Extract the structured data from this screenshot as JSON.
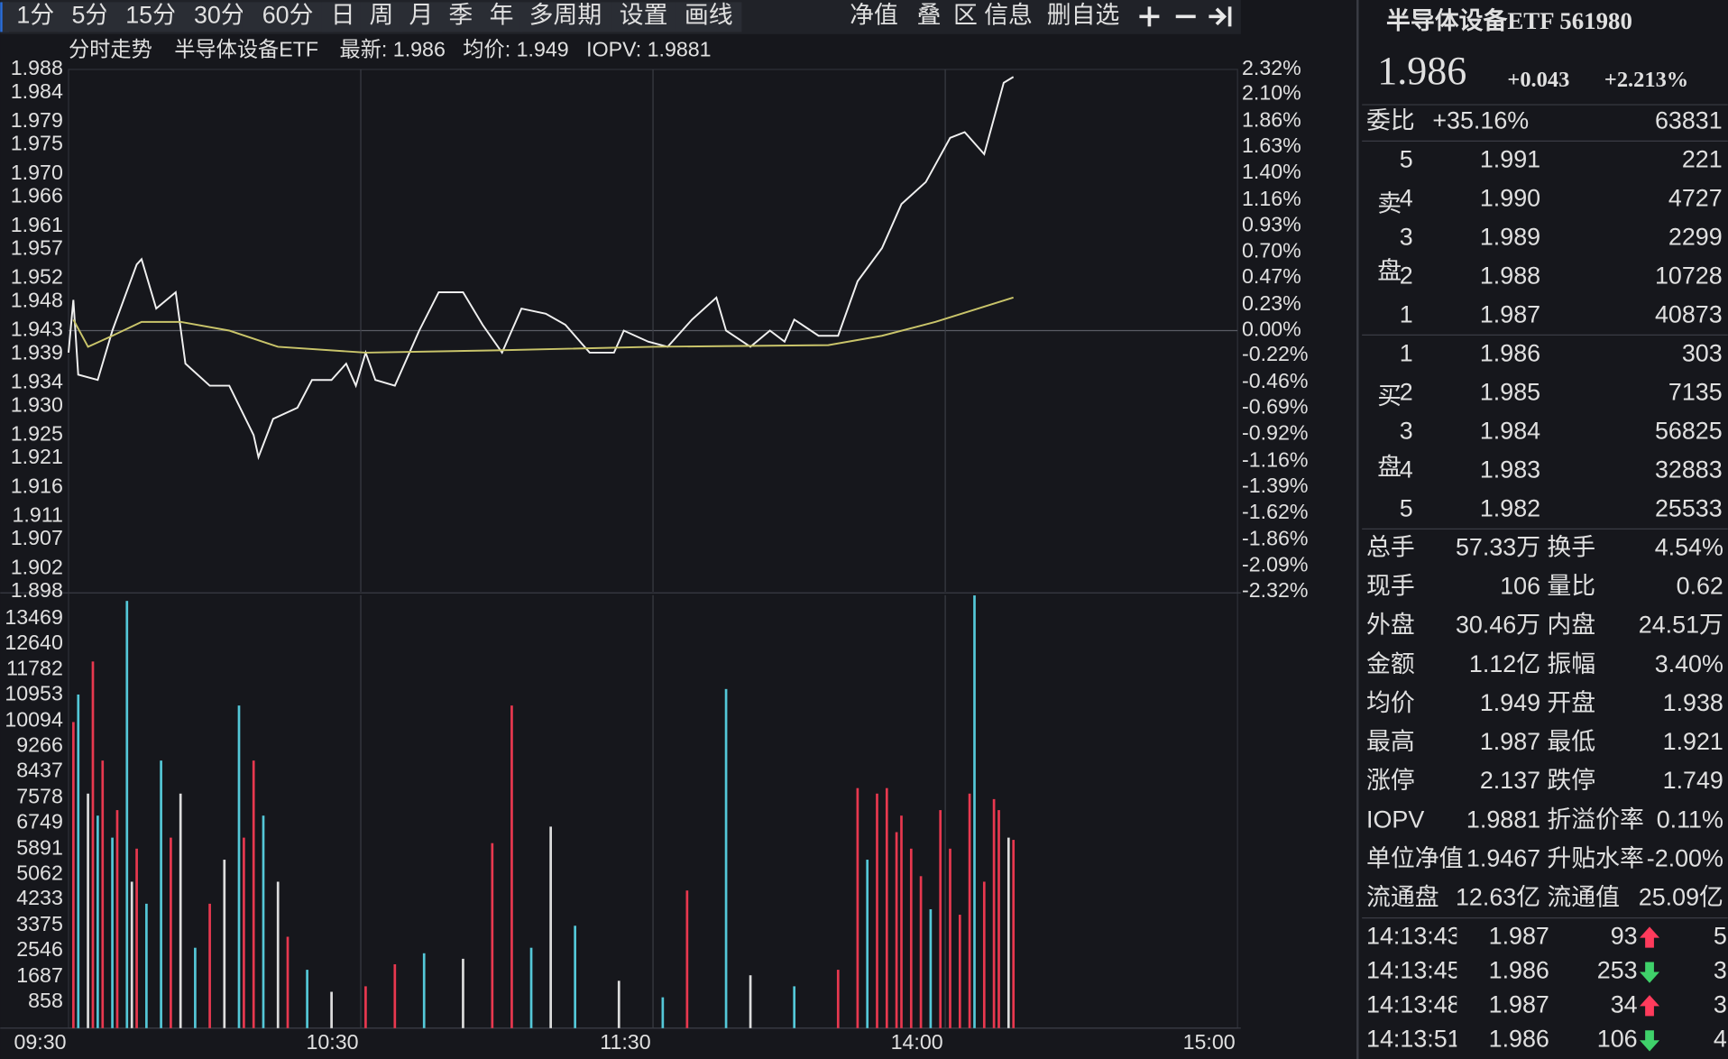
{
  "toolbar": {
    "periods": [
      "1分",
      "5分",
      "15分",
      "30分",
      "60分",
      "日",
      "周",
      "月",
      "季",
      "年",
      "多周期",
      "设置",
      "画线"
    ],
    "tools": [
      "净值",
      "叠",
      "区",
      "信息",
      "删自选"
    ]
  },
  "chart_header": {
    "mode": "分时走势",
    "name": "半导体设备ETF",
    "latest": "最新: 1.986",
    "avg": "均价: 1.949",
    "iopv": "IOPV: 1.9881"
  },
  "chart_data": [
    {
      "type": "line",
      "series": [
        {
          "color": "#f0f0f0",
          "x": [
            0,
            1,
            2,
            6,
            9,
            14,
            15,
            18,
            22,
            24,
            29,
            33,
            38,
            39,
            42,
            47,
            50,
            54,
            57,
            59,
            61,
            63,
            67,
            72,
            76,
            81,
            85,
            89,
            93,
            98,
            102,
            107,
            112,
            114,
            119,
            123,
            128,
            133,
            135,
            140,
            144,
            147,
            149,
            154,
            158,
            162,
            167,
            171,
            176,
            181,
            184,
            188,
            192,
            194
          ],
          "values": [
            1.9392,
            1.9483,
            1.9354,
            1.9345,
            1.943,
            1.9544,
            1.9553,
            1.9468,
            1.9496,
            1.9373,
            1.9335,
            1.9335,
            1.925,
            1.9212,
            1.9278,
            1.9297,
            1.9345,
            1.9345,
            1.9373,
            1.9335,
            1.9392,
            1.9345,
            1.9335,
            1.943,
            1.9496,
            1.9496,
            1.944,
            1.9392,
            1.9468,
            1.9459,
            1.944,
            1.9392,
            1.9392,
            1.943,
            1.9411,
            1.9402,
            1.9449,
            1.9487,
            1.943,
            1.9402,
            1.943,
            1.9411,
            1.9449,
            1.9421,
            1.9421,
            1.9515,
            1.9572,
            1.9648,
            1.9686,
            1.9762,
            1.9772,
            1.9734,
            1.9857,
            1.9867
          ]
        },
        {
          "color": "#c9c46a",
          "x": [
            1,
            4,
            9,
            15,
            23,
            33,
            43,
            61,
            88,
            120,
            156,
            167,
            178,
            194
          ],
          "values": [
            1.9449,
            1.9402,
            1.9421,
            1.9445,
            1.9445,
            1.943,
            1.9402,
            1.9392,
            1.9396,
            1.9402,
            1.9405,
            1.9421,
            1.9445,
            1.9487
          ]
        }
      ],
      "xlim": [
        0,
        240
      ],
      "xticks": [
        {
          "value": 0,
          "label": "09:30"
        },
        {
          "value": 60,
          "label": "10:30"
        },
        {
          "value": 120,
          "label": "11:30"
        },
        {
          "value": 180,
          "label": "14:00"
        },
        {
          "value": 240,
          "label": "15:00"
        }
      ],
      "ylim": [
        1.898,
        1.988
      ],
      "yticks": [
        1.988,
        1.984,
        1.979,
        1.975,
        {
          "value": 1.97,
          "label": "1.970"
        },
        1.966,
        1.961,
        1.957,
        1.952,
        1.948,
        1.943,
        1.939,
        1.934,
        {
          "value": 1.93,
          "label": "1.930"
        },
        1.925,
        1.921,
        1.916,
        1.911,
        1.907,
        1.902,
        1.898
      ],
      "y2lim": [
        -2.32,
        2.32
      ],
      "y2ticks": [
        {
          "value": 2.32,
          "label": "2.32%"
        },
        {
          "value": 2.1,
          "label": "2.10%"
        },
        {
          "value": 1.86,
          "label": "1.86%"
        },
        {
          "value": 1.63,
          "label": "1.63%"
        },
        {
          "value": 1.4,
          "label": "1.40%"
        },
        {
          "value": 1.16,
          "label": "1.16%"
        },
        {
          "value": 0.93,
          "label": "0.93%"
        },
        {
          "value": 0.7,
          "label": "0.70%"
        },
        {
          "value": 0.47,
          "label": "0.47%"
        },
        {
          "value": 0.23,
          "label": "0.23%"
        },
        {
          "value": 0,
          "label": "0.00%"
        },
        {
          "value": -0.22,
          "label": "-0.22%"
        },
        {
          "value": -0.46,
          "label": "-0.46%"
        },
        {
          "value": -0.69,
          "label": "-0.69%"
        },
        {
          "value": -0.92,
          "label": "-0.92%"
        },
        {
          "value": -1.16,
          "label": "-1.16%"
        },
        {
          "value": -1.39,
          "label": "-1.39%"
        },
        {
          "value": -1.62,
          "label": "-1.62%"
        },
        {
          "value": -1.86,
          "label": "-1.86%"
        },
        {
          "value": -2.09,
          "label": "-2.09%"
        },
        {
          "value": -2.32,
          "label": "-2.32%"
        }
      ],
      "up_color": "#ff3b5c",
      "down_color": "#3fd16a",
      "flat_color": "#e0e0e0"
    },
    {
      "type": "bar",
      "x": [
        1,
        2,
        4,
        5,
        6,
        7,
        9,
        10,
        12,
        13,
        14,
        16,
        19,
        21,
        23,
        26,
        29,
        32,
        35,
        36,
        38,
        40,
        43,
        45,
        49,
        54,
        61,
        67,
        73,
        81,
        87,
        91,
        95,
        99,
        104,
        113,
        122,
        127,
        135,
        140,
        149,
        158,
        162,
        164,
        166,
        168,
        170,
        171,
        173,
        175,
        177,
        179,
        181,
        183,
        185,
        186,
        188,
        190,
        191,
        193,
        194
      ],
      "values": [
        10065,
        10970,
        7712,
        12056,
        6988,
        8798,
        6264,
        7169,
        14048,
        4815,
        5902,
        4091,
        8798,
        6264,
        7712,
        2643,
        4091,
        5539,
        10608,
        6264,
        8798,
        6988,
        4815,
        3005,
        1919,
        1195,
        1376,
        2100,
        2462,
        2281,
        6083,
        10608,
        2643,
        6626,
        3367,
        1557,
        1014,
        4526,
        11151,
        1738,
        1376,
        1919,
        7893,
        5539,
        7712,
        7893,
        6445,
        6988,
        5902,
        4997,
        3910,
        7169,
        5902,
        3729,
        7712,
        14229,
        4815,
        7531,
        7169,
        6264,
        6191
      ],
      "colors": [
        "#e8384f",
        "#54c8d8",
        "#dddddd",
        "#e8384f",
        "#54c8d8",
        "#e8384f",
        "#54c8d8",
        "#e8384f",
        "#54c8d8",
        "#dddddd",
        "#e8384f",
        "#54c8d8",
        "#54c8d8",
        "#e8384f",
        "#dddddd",
        "#54c8d8",
        "#e8384f",
        "#dddddd",
        "#54c8d8",
        "#e8384f",
        "#e8384f",
        "#54c8d8",
        "#dddddd",
        "#e8384f",
        "#54c8d8",
        "#dddddd",
        "#e8384f",
        "#e8384f",
        "#54c8d8",
        "#dddddd",
        "#e8384f",
        "#e8384f",
        "#54c8d8",
        "#dddddd",
        "#54c8d8",
        "#dddddd",
        "#54c8d8",
        "#e8384f",
        "#54c8d8",
        "#dddddd",
        "#54c8d8",
        "#e8384f",
        "#e8384f",
        "#54c8d8",
        "#e8384f",
        "#e8384f",
        "#e8384f",
        "#e8384f",
        "#e8384f",
        "#e8384f",
        "#54c8d8",
        "#e8384f",
        "#e8384f",
        "#e8384f",
        "#e8384f",
        "#54c8d8",
        "#e8384f",
        "#e8384f",
        "#e8384f",
        "#dddddd",
        "#e8384f"
      ],
      "xlim": [
        0,
        240
      ],
      "ylim": [
        0,
        14240
      ],
      "yticks": [
        13469,
        12640,
        11782,
        10953,
        10094,
        9266,
        8437,
        7578,
        6749,
        5891,
        5062,
        4233,
        3375,
        2546,
        1687,
        858
      ]
    }
  ],
  "quote": {
    "title": "半导体设备ETF 561980",
    "price": "1.986",
    "change": "+0.043",
    "change_pct": "+2.213%",
    "ratio_label": "委比",
    "ratio": "+35.16%",
    "ratio_diff": "63831",
    "sell_label": [
      "卖",
      "盘"
    ],
    "buy_label": [
      "买",
      "盘"
    ],
    "asks": [
      {
        "level": "5",
        "price": "1.991",
        "volume": "221"
      },
      {
        "level": "4",
        "price": "1.990",
        "volume": "4727"
      },
      {
        "level": "3",
        "price": "1.989",
        "volume": "2299"
      },
      {
        "level": "2",
        "price": "1.988",
        "volume": "10728"
      },
      {
        "level": "1",
        "price": "1.987",
        "volume": "40873"
      }
    ],
    "bids": [
      {
        "level": "1",
        "price": "1.986",
        "volume": "303"
      },
      {
        "level": "2",
        "price": "1.985",
        "volume": "7135"
      },
      {
        "level": "3",
        "price": "1.984",
        "volume": "56825"
      },
      {
        "level": "4",
        "price": "1.983",
        "volume": "32883"
      },
      {
        "level": "5",
        "price": "1.982",
        "volume": "25533"
      }
    ],
    "stats": [
      [
        {
          "label": "总手",
          "value": "57.33万",
          "color": "#e0e0e0"
        },
        {
          "label": "换手",
          "value": "4.54%",
          "color": "#e0e0e0"
        }
      ],
      [
        {
          "label": "现手",
          "value": "106",
          "color": "#3fd16a"
        },
        {
          "label": "量比",
          "value": "0.62",
          "color": "#3fd16a"
        }
      ],
      [
        {
          "label": "外盘",
          "value": "30.46万",
          "color": "#ff3b5c"
        },
        {
          "label": "内盘",
          "value": "24.51万",
          "color": "#3fd16a"
        }
      ],
      [
        {
          "label": "金额",
          "value": "1.12亿",
          "color": "#e0e0e0"
        },
        {
          "label": "振幅",
          "value": "3.40%",
          "color": "#e0e0e0"
        }
      ],
      [
        {
          "label": "均价",
          "value": "1.949",
          "color": "#ff3b5c"
        },
        {
          "label": "开盘",
          "value": "1.938",
          "color": "#3fd16a"
        }
      ],
      [
        {
          "label": "最高",
          "value": "1.987",
          "color": "#ff3b5c"
        },
        {
          "label": "最低",
          "value": "1.921",
          "color": "#3fd16a"
        }
      ],
      [
        {
          "label": "涨停",
          "value": "2.137",
          "color": "#ff3b5c"
        },
        {
          "label": "跌停",
          "value": "1.749",
          "color": "#3fd16a"
        }
      ],
      [
        {
          "label": "IOPV",
          "value": "1.9881",
          "color": "#ff3b5c"
        },
        {
          "label": "折溢价率",
          "value": "0.11%",
          "color": "#3fd16a"
        }
      ],
      [
        {
          "label": "单位净值",
          "value": "1.9467",
          "color": "#3fd16a"
        },
        {
          "label": "升贴水率",
          "value": "-2.00%",
          "color": "#ff3b5c"
        }
      ],
      [
        {
          "label": "流通盘",
          "value": "12.63亿",
          "color": "#e0e0e0"
        },
        {
          "label": "流通值",
          "value": "25.09亿",
          "color": "#e0e0e0"
        }
      ]
    ],
    "trades": [
      {
        "time": "14:13:43",
        "price": "1.987",
        "volume": "93",
        "volume_color": "#ff3b5c",
        "direction": "up",
        "count": "5"
      },
      {
        "time": "14:13:45",
        "price": "1.986",
        "volume": "253",
        "volume_color": "#3fd16a",
        "direction": "down",
        "count": "3"
      },
      {
        "time": "14:13:48",
        "price": "1.987",
        "volume": "34",
        "volume_color": "#ff3b5c",
        "direction": "up",
        "count": "3"
      },
      {
        "time": "14:13:51",
        "price": "1.986",
        "volume": "106",
        "volume_color": "#3fd16a",
        "direction": "down",
        "count": "4"
      }
    ]
  }
}
